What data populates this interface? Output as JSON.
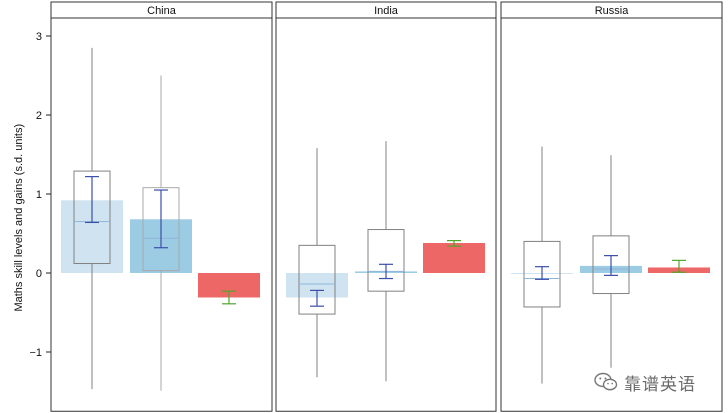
{
  "chart_data": {
    "type": "box",
    "ylabel": "Maths skill levels and gains (s.d. units)",
    "ylim": [
      -1.75,
      3.15
    ],
    "yticks": [
      {
        "value": 3,
        "label": "3"
      },
      {
        "value": 2,
        "label": "2"
      },
      {
        "value": 1,
        "label": "1"
      },
      {
        "value": 0,
        "label": "0"
      },
      {
        "value": -1,
        "label": "−1"
      }
    ],
    "panels": [
      {
        "title": "China",
        "elements": [
          {
            "type": "box",
            "color": "#808080",
            "whisker_low": -1.47,
            "q1": 0.12,
            "median": 0.65,
            "q3": 1.29,
            "whisker_high": 2.85
          },
          {
            "type": "bar",
            "value": 0.92,
            "color": "#cfe4f0"
          },
          {
            "type": "errorbar",
            "low": 0.64,
            "high": 1.22,
            "color": "#3c4fa8"
          },
          {
            "type": "box",
            "color": "#a8a8a8",
            "whisker_low": -1.49,
            "q1": 0.03,
            "median": 0.44,
            "q3": 1.08,
            "whisker_high": 2.5
          },
          {
            "type": "bar",
            "value": 0.68,
            "color": "#9ccbe4"
          },
          {
            "type": "errorbar",
            "low": 0.32,
            "high": 1.05,
            "color": "#3c4fa8"
          },
          {
            "type": "bar",
            "value": -0.31,
            "color": "#ee6767"
          },
          {
            "type": "errorbar",
            "low": -0.39,
            "high": -0.23,
            "color": "#52a62a"
          }
        ]
      },
      {
        "title": "India",
        "elements": [
          {
            "type": "box",
            "color": "#808080",
            "whisker_low": -1.32,
            "q1": -0.52,
            "median": -0.14,
            "q3": 0.35,
            "whisker_high": 1.58
          },
          {
            "type": "bar",
            "value": -0.31,
            "color": "#cfe4f0"
          },
          {
            "type": "errorbar",
            "low": -0.42,
            "high": -0.22,
            "color": "#3c4fa8"
          },
          {
            "type": "box",
            "color": "#808080",
            "whisker_low": -1.37,
            "q1": -0.23,
            "median": 0.02,
            "q3": 0.55,
            "whisker_high": 1.67
          },
          {
            "type": "bar",
            "value": 0.02,
            "color": "#9ccbe4"
          },
          {
            "type": "errorbar",
            "low": -0.07,
            "high": 0.11,
            "color": "#3c4fa8"
          },
          {
            "type": "bar",
            "value": 0.38,
            "color": "#ee6767"
          },
          {
            "type": "errorbar",
            "low": 0.34,
            "high": 0.41,
            "color": "#52a62a"
          }
        ]
      },
      {
        "title": "Russia",
        "elements": [
          {
            "type": "box",
            "color": "#808080",
            "whisker_low": -1.4,
            "q1": -0.43,
            "median": -0.07,
            "q3": 0.4,
            "whisker_high": 1.6
          },
          {
            "type": "bar",
            "value": 0.0,
            "color": "#cfe4f0"
          },
          {
            "type": "errorbar",
            "low": -0.08,
            "high": 0.08,
            "color": "#3c4fa8"
          },
          {
            "type": "box",
            "color": "#808080",
            "whisker_low": -1.2,
            "q1": -0.26,
            "median": 0.05,
            "q3": 0.47,
            "whisker_high": 1.49
          },
          {
            "type": "bar",
            "value": 0.09,
            "color": "#9ccbe4"
          },
          {
            "type": "errorbar",
            "low": -0.03,
            "high": 0.22,
            "color": "#3c4fa8"
          },
          {
            "type": "bar",
            "value": 0.07,
            "color": "#ee6767"
          },
          {
            "type": "errorbar",
            "low": 0.01,
            "high": 0.16,
            "color": "#52a62a"
          }
        ]
      }
    ]
  },
  "watermark": {
    "text": "靠谱英语",
    "icon": "wechat-icon"
  }
}
